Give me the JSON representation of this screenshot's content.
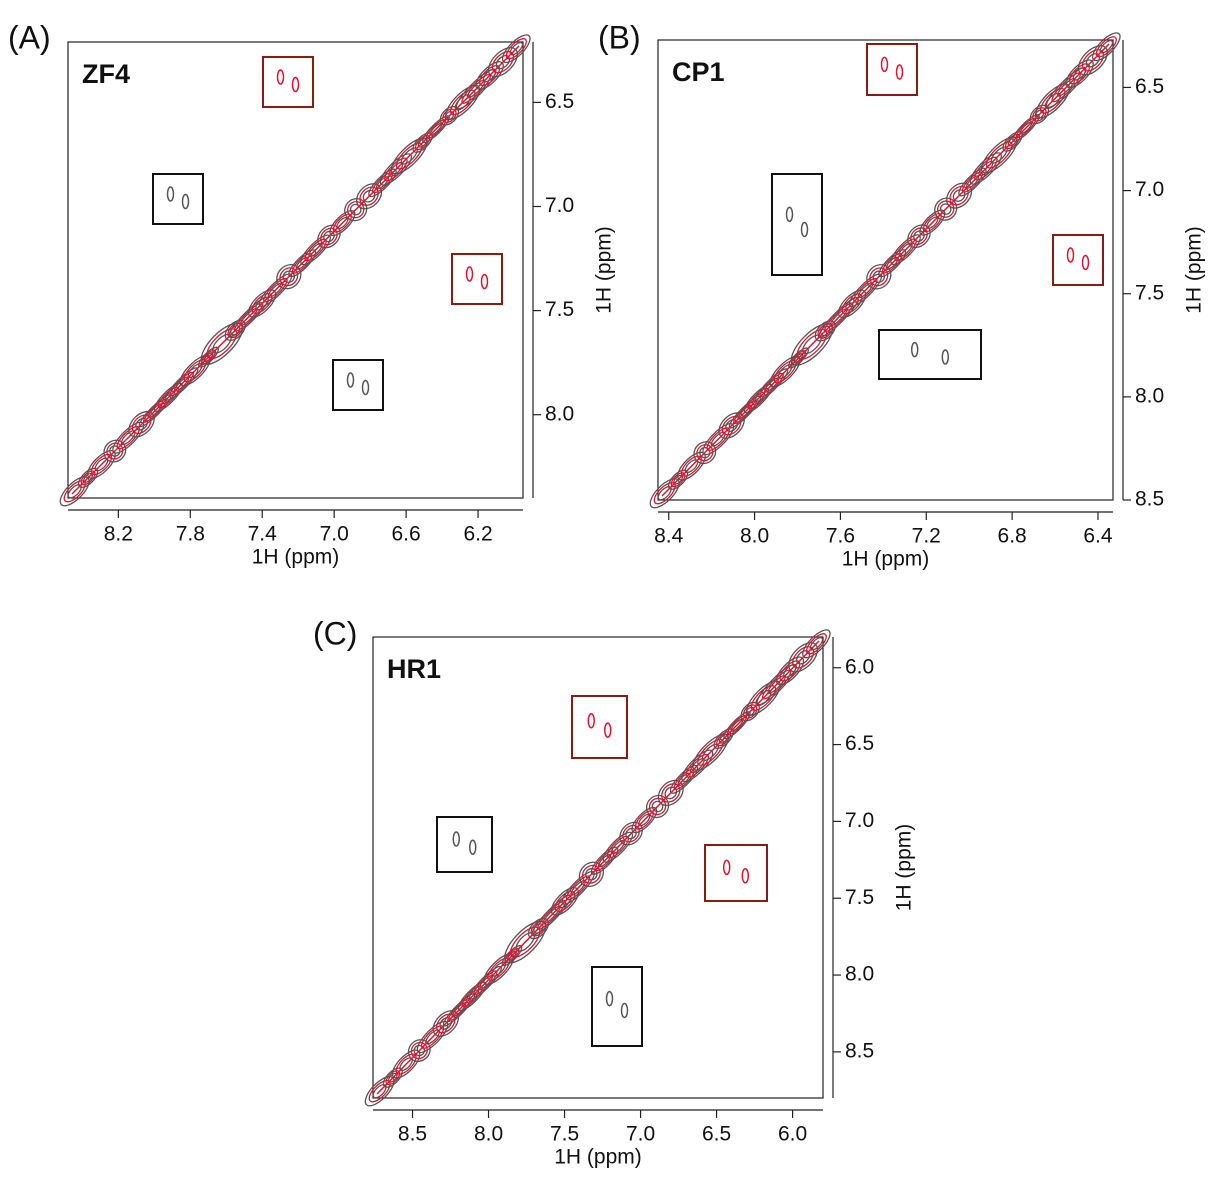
{
  "chart_data": [
    {
      "type": "contour",
      "panel": "(A)",
      "title": "ZF4",
      "xlabel": "1H (ppm)",
      "ylabel": "1H (ppm)",
      "xlim": [
        8.48,
        5.95
      ],
      "ylim": [
        6.21,
        8.4
      ],
      "xticks": [
        8.2,
        7.8,
        7.4,
        {
          "value": 7,
          "label": "7.0"
        },
        6.6,
        6.2
      ],
      "yticks": [
        6.5,
        {
          "value": 7,
          "label": "7.0"
        },
        7.5,
        {
          "value": 8,
          "label": "8.0"
        }
      ]
    },
    {
      "type": "contour",
      "panel": "(B)",
      "title": "CP1",
      "xlabel": "1H (ppm)",
      "ylabel": "1H (ppm)",
      "xlim": [
        8.45,
        6.33
      ],
      "ylim": [
        6.27,
        8.5
      ],
      "xticks": [
        8.4,
        {
          "value": 8,
          "label": "8.0"
        },
        7.6,
        7.2,
        6.8,
        6.4
      ],
      "yticks": [
        6.5,
        {
          "value": 7,
          "label": "7.0"
        },
        7.5,
        {
          "value": 8,
          "label": "8.0"
        },
        8.5
      ]
    },
    {
      "type": "contour",
      "panel": "(C)",
      "title": "HR1",
      "xlabel": "1H (ppm)",
      "ylabel": "1H (ppm)",
      "xlim": [
        8.76,
        5.8
      ],
      "ylim": [
        5.8,
        8.8
      ],
      "xticks": [
        8.5,
        {
          "value": 8,
          "label": "8.0"
        },
        7.5,
        {
          "value": 7,
          "label": "7.0"
        },
        6.5,
        {
          "value": 6,
          "label": "6.0"
        }
      ],
      "yticks": [
        {
          "value": 6,
          "label": "6.0"
        },
        6.5,
        {
          "value": 7,
          "label": "7.0"
        },
        7.5,
        {
          "value": 8,
          "label": "8.0"
        },
        8.5
      ]
    }
  ]
}
